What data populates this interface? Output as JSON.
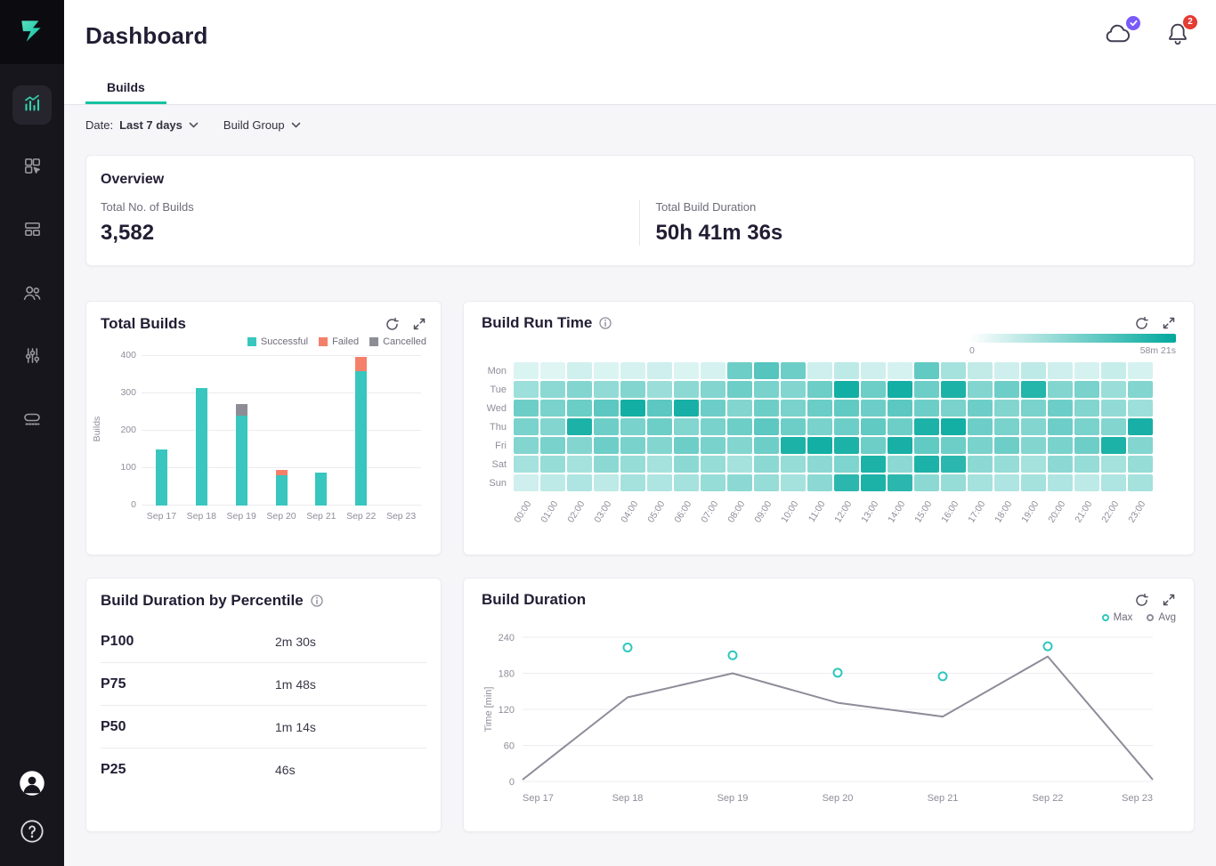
{
  "colors": {
    "accent": "#2fc6bd",
    "tab_underline": "#15c2a1",
    "success": "#38c6be",
    "failed": "#f5806a",
    "cancelled": "#8d8d95",
    "avg_line": "#8e8c99",
    "max_point": "#2fc6bd",
    "heat_low": "#f2fcfb",
    "heat_high": "#00a89d",
    "badge_red": "#e43b32",
    "badge_purple": "#7a5af8",
    "sidebar_bg": "#17161c"
  },
  "sidebar": {
    "items": [
      {
        "id": "insights",
        "icon": "insights-chart-icon",
        "active": true
      },
      {
        "id": "apps",
        "icon": "apps-pointer-icon",
        "active": false
      },
      {
        "id": "dashboards",
        "icon": "cards-icon",
        "active": false
      },
      {
        "id": "users",
        "icon": "users-icon",
        "active": false
      },
      {
        "id": "settings",
        "icon": "sliders-icon",
        "active": false
      },
      {
        "id": "steps",
        "icon": "steps-icon",
        "active": false
      }
    ]
  },
  "header": {
    "title": "Dashboard",
    "notification_count": "2"
  },
  "tabs": {
    "builds": "Builds"
  },
  "filters": {
    "date_label": "Date:",
    "date_value": "Last 7 days",
    "build_group_label": "Build Group"
  },
  "overview": {
    "title": "Overview",
    "stats": [
      {
        "label": "Total No. of Builds",
        "value": "3,582"
      },
      {
        "label": "Total Build Duration",
        "value": "50h 41m 36s"
      }
    ]
  },
  "cards": {
    "total_builds": {
      "title": "Total Builds"
    },
    "build_run_time": {
      "title": "Build Run Time",
      "scale_min": "0",
      "scale_max": "58m 21s"
    },
    "percentile": {
      "title": "Build Duration by Percentile",
      "rows": [
        {
          "label": "P100",
          "value": "2m 30s"
        },
        {
          "label": "P75",
          "value": "1m 48s"
        },
        {
          "label": "P50",
          "value": "1m 14s"
        },
        {
          "label": "P25",
          "value": "46s"
        }
      ]
    },
    "build_duration": {
      "title": "Build Duration"
    }
  },
  "chart_data": [
    {
      "id": "total_builds",
      "type": "bar",
      "title": "Total Builds",
      "categories": [
        "Sep 17",
        "Sep 18",
        "Sep 19",
        "Sep 20",
        "Sep 21",
        "Sep 22",
        "Sep 23"
      ],
      "series": [
        {
          "name": "Successful",
          "color_key": "success",
          "values": [
            150,
            315,
            241,
            80,
            87,
            359,
            0
          ]
        },
        {
          "name": "Failed",
          "color_key": "failed",
          "values": [
            0,
            0,
            0,
            16,
            0,
            39,
            0
          ]
        },
        {
          "name": "Cancelled",
          "color_key": "cancelled",
          "values": [
            0,
            0,
            30,
            0,
            0,
            0,
            0
          ]
        }
      ],
      "xlabel": "",
      "ylabel": "Builds",
      "yticks": [
        0,
        100,
        200,
        300,
        400
      ],
      "ylim": [
        0,
        400
      ],
      "legend_position": "top-right",
      "grid": true,
      "stacked": true
    },
    {
      "id": "build_run_time",
      "type": "heatmap",
      "title": "Build Run Time",
      "rows": [
        "Mon",
        "Tue",
        "Wed",
        "Thu",
        "Fri",
        "Sat",
        "Sun"
      ],
      "columns": [
        "00:00",
        "01:00",
        "02:00",
        "03:00",
        "04:00",
        "05:00",
        "06:00",
        "07:00",
        "08:00",
        "09:00",
        "10:00",
        "11:00",
        "12:00",
        "13:00",
        "14:00",
        "15:00",
        "16:00",
        "17:00",
        "18:00",
        "19:00",
        "20:00",
        "21:00",
        "22:00",
        "23:00"
      ],
      "scale": {
        "min_label": "0",
        "max_label": "58m 21s"
      },
      "values": [
        [
          0.1,
          0.08,
          0.14,
          0.1,
          0.12,
          0.15,
          0.1,
          0.12,
          0.55,
          0.65,
          0.55,
          0.15,
          0.22,
          0.15,
          0.12,
          0.6,
          0.32,
          0.2,
          0.15,
          0.22,
          0.15,
          0.12,
          0.18,
          0.12
        ],
        [
          0.35,
          0.42,
          0.46,
          0.4,
          0.46,
          0.36,
          0.42,
          0.46,
          0.55,
          0.5,
          0.46,
          0.55,
          0.92,
          0.55,
          0.92,
          0.55,
          0.88,
          0.46,
          0.55,
          0.85,
          0.46,
          0.5,
          0.36,
          0.46
        ],
        [
          0.55,
          0.5,
          0.56,
          0.62,
          0.92,
          0.62,
          0.9,
          0.55,
          0.46,
          0.55,
          0.5,
          0.56,
          0.6,
          0.55,
          0.62,
          0.55,
          0.5,
          0.55,
          0.46,
          0.5,
          0.55,
          0.46,
          0.4,
          0.35
        ],
        [
          0.5,
          0.46,
          0.88,
          0.55,
          0.5,
          0.55,
          0.46,
          0.5,
          0.55,
          0.62,
          0.55,
          0.5,
          0.55,
          0.6,
          0.55,
          0.88,
          0.92,
          0.55,
          0.5,
          0.46,
          0.55,
          0.5,
          0.46,
          0.9
        ],
        [
          0.46,
          0.5,
          0.46,
          0.55,
          0.5,
          0.46,
          0.55,
          0.5,
          0.46,
          0.55,
          0.88,
          0.92,
          0.88,
          0.55,
          0.9,
          0.6,
          0.55,
          0.5,
          0.55,
          0.46,
          0.5,
          0.55,
          0.88,
          0.46
        ],
        [
          0.32,
          0.38,
          0.32,
          0.42,
          0.38,
          0.32,
          0.42,
          0.38,
          0.32,
          0.42,
          0.38,
          0.42,
          0.48,
          0.88,
          0.42,
          0.88,
          0.82,
          0.42,
          0.38,
          0.32,
          0.42,
          0.38,
          0.32,
          0.38
        ],
        [
          0.15,
          0.22,
          0.28,
          0.22,
          0.32,
          0.28,
          0.32,
          0.38,
          0.42,
          0.38,
          0.32,
          0.42,
          0.82,
          0.88,
          0.82,
          0.42,
          0.38,
          0.32,
          0.28,
          0.32,
          0.28,
          0.22,
          0.28,
          0.32
        ]
      ]
    },
    {
      "id": "build_duration",
      "type": "line",
      "title": "Build Duration",
      "categories": [
        "Sep 17",
        "Sep 18",
        "Sep 19",
        "Sep 20",
        "Sep 21",
        "Sep 22",
        "Sep 23"
      ],
      "series": [
        {
          "name": "Max",
          "style": "points",
          "values": [
            null,
            223,
            210,
            181,
            175,
            225,
            null
          ]
        },
        {
          "name": "Avg",
          "style": "line",
          "values": [
            3,
            140,
            180,
            131,
            108,
            208,
            3
          ]
        }
      ],
      "xlabel": "",
      "ylabel": "Time [min]",
      "yticks": [
        0,
        60,
        120,
        180,
        240
      ],
      "ylim": [
        0,
        240
      ],
      "legend_position": "top-right",
      "grid": true
    }
  ]
}
